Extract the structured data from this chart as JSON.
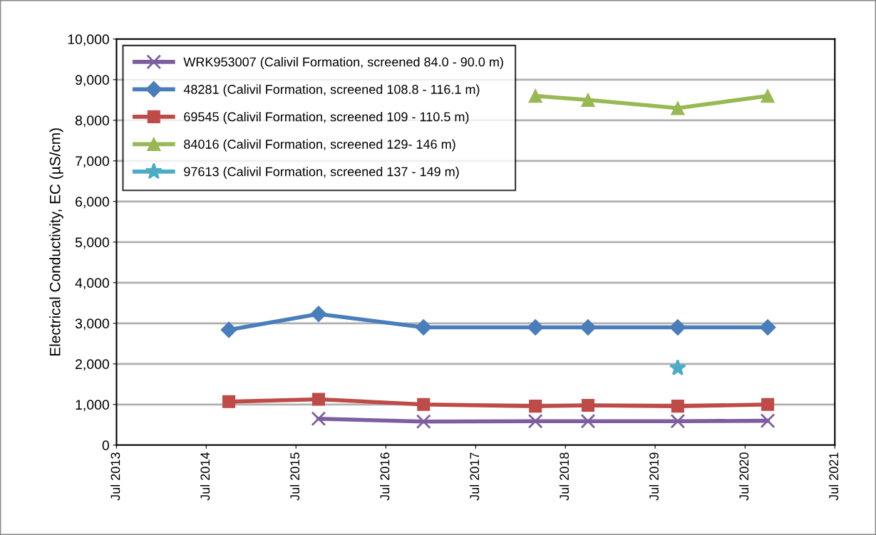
{
  "chart_data": {
    "type": "line",
    "ylabel": "Electrical Conductivity, EC (µS/cm)",
    "x": [
      "2014-10",
      "2015-10",
      "2016-12",
      "2018-03",
      "2018-10",
      "2019-10",
      "2020-10"
    ],
    "series": [
      {
        "name": "WRK953007 (Calivil Formation, screened 84.0 - 90.0 m)",
        "color": "#7d5fa0",
        "marker": "cross",
        "values": [
          null,
          650,
          580,
          590,
          590,
          590,
          600
        ]
      },
      {
        "name": "48281 (Calivil Formation, screened 108.8 - 116.1 m)",
        "color": "#4a7ebb",
        "marker": "diamond",
        "values": [
          2840,
          3230,
          2900,
          2900,
          2900,
          2900,
          2900
        ]
      },
      {
        "name": "69545 (Calivil Formation, screened 109 - 110.5 m)",
        "color": "#be4b48",
        "marker": "square",
        "values": [
          1070,
          1130,
          1000,
          960,
          980,
          960,
          1000
        ]
      },
      {
        "name": "84016 (Calivil Formation, screened 129- 146 m)",
        "color": "#98b954",
        "marker": "triangle",
        "values": [
          null,
          null,
          null,
          8600,
          8500,
          8300,
          8600
        ]
      },
      {
        "name": "97613 (Calivil Formation, screened 137 - 149 m)",
        "color": "#4bacc6",
        "marker": "star",
        "values": [
          null,
          null,
          null,
          null,
          null,
          1900,
          null
        ]
      }
    ],
    "xlim": [
      "2013-07",
      "2021-07"
    ],
    "xticks": [
      {
        "value": "2013-07",
        "label": "Jul 2013"
      },
      {
        "value": "2014-07",
        "label": "Jul 2014"
      },
      {
        "value": "2015-07",
        "label": "Jul 2015"
      },
      {
        "value": "2016-07",
        "label": "Jul 2016"
      },
      {
        "value": "2017-07",
        "label": "Jul 2017"
      },
      {
        "value": "2018-07",
        "label": "Jul 2018"
      },
      {
        "value": "2019-07",
        "label": "Jul 2019"
      },
      {
        "value": "2020-07",
        "label": "Jul 2020"
      },
      {
        "value": "2021-07",
        "label": "Jul 2021"
      }
    ],
    "ylim": [
      0,
      10000
    ],
    "yticks": [
      {
        "value": 0,
        "label": "0"
      },
      {
        "value": 1000,
        "label": "1,000"
      },
      {
        "value": 2000,
        "label": "2,000"
      },
      {
        "value": 3000,
        "label": "3,000"
      },
      {
        "value": 4000,
        "label": "4,000"
      },
      {
        "value": 5000,
        "label": "5,000"
      },
      {
        "value": 6000,
        "label": "6,000"
      },
      {
        "value": 7000,
        "label": "7,000"
      },
      {
        "value": 8000,
        "label": "8,000"
      },
      {
        "value": 9000,
        "label": "9,000"
      },
      {
        "value": 10000,
        "label": "10,000"
      }
    ],
    "grid": "y",
    "legend": "top left",
    "line_style": "solid"
  }
}
